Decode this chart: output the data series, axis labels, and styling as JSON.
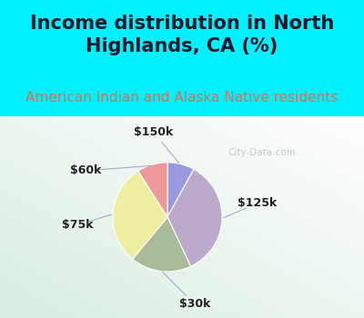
{
  "title": "Income distribution in North\nHighlands, CA (%)",
  "subtitle": "American Indian and Alaska Native residents",
  "slices": [
    {
      "label": "$150k",
      "value": 8,
      "color": "#9999dd"
    },
    {
      "label": "$125k",
      "value": 35,
      "color": "#bbaacc"
    },
    {
      "label": "$30k",
      "value": 18,
      "color": "#aabb99"
    },
    {
      "label": "$75k",
      "value": 30,
      "color": "#eeeea0"
    },
    {
      "label": "$60k",
      "value": 9,
      "color": "#ee9999"
    }
  ],
  "bg_color_top": "#00f0ff",
  "watermark": "City-Data.com",
  "title_fontsize": 15,
  "subtitle_fontsize": 11,
  "label_fontsize": 9,
  "title_color": "#1a1a2e",
  "subtitle_color": "#cc7755"
}
